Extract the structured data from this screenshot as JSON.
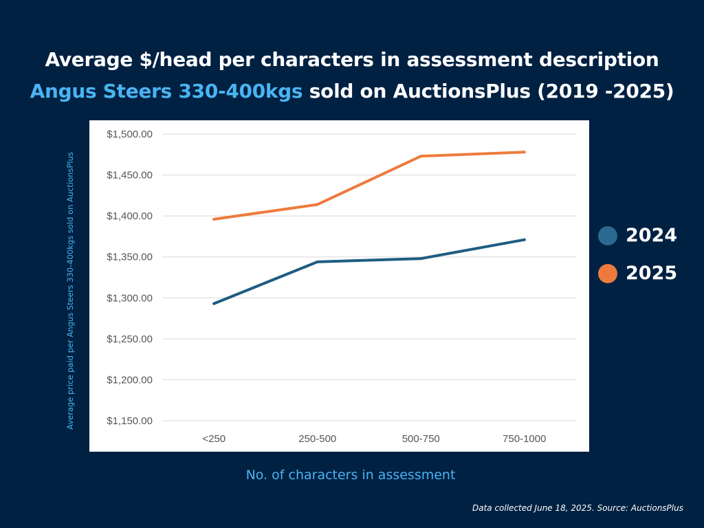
{
  "title": {
    "line1": "Average $/head per characters in assessment description",
    "line2_highlight": "Angus Steers 330-400kgs",
    "line2_rest": " sold on AuctionsPlus (2019 -2025)"
  },
  "footnote": "Data collected June 18, 2025. Source: AuctionsPlus",
  "colors": {
    "background": "#002142",
    "highlight": "#4bb3f2",
    "series_2024": "#1f5c80",
    "series_2025": "#ee7b3d",
    "legend_2024": "#2a6a91",
    "legend_2025": "#ee7b3d"
  },
  "chart_data": {
    "type": "line",
    "categories": [
      "<250",
      "250-500",
      "500-750",
      "750-1000"
    ],
    "series": [
      {
        "name": "2024",
        "values": [
          1293,
          1344,
          1348,
          1371
        ]
      },
      {
        "name": "2025",
        "values": [
          1396,
          1414,
          1473,
          1478
        ]
      }
    ],
    "xlabel": "No. of characters in assessment",
    "ylabel": "Average price paid per Angus Steers 330-400kgs sold on AuctionsPlus",
    "ylim": [
      1150,
      1500
    ],
    "yticks": [
      1500,
      1450,
      1400,
      1350,
      1300,
      1250,
      1200,
      1150
    ],
    "ytick_labels": [
      "$1,500.00",
      "$1,450.00",
      "$1,400.00",
      "$1,350.00",
      "$1,300.00",
      "$1,250.00",
      "$1,200.00",
      "$1,150.00"
    ],
    "grid": true,
    "legend": "right"
  }
}
